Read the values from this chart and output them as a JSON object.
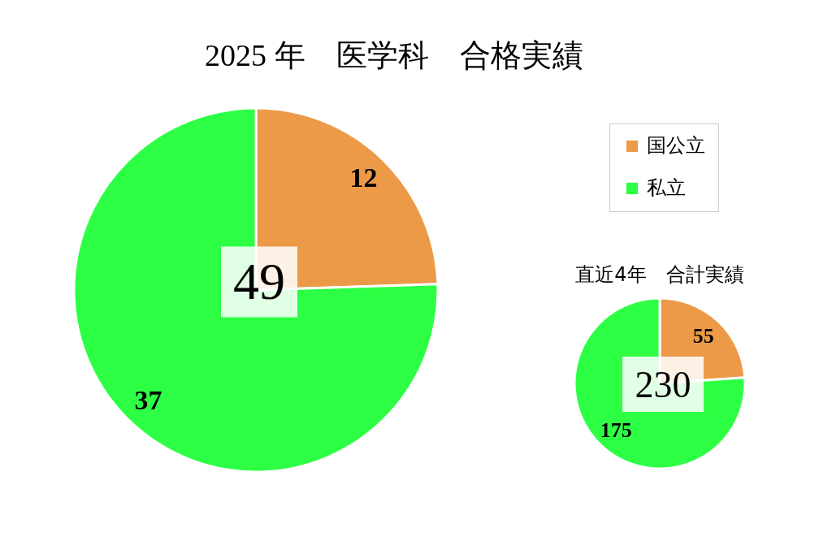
{
  "chart_data": [
    {
      "type": "pie",
      "title": "2025 年　医学科　合格実績",
      "categories": [
        "国公立",
        "私立"
      ],
      "values": [
        12,
        37
      ],
      "colors": [
        "#ec9a48",
        "#2cff44"
      ],
      "data_labels": true,
      "legend": "right",
      "annotations": [
        "49"
      ]
    },
    {
      "type": "pie",
      "title": "直近4年　合計実績",
      "categories": [
        null,
        null
      ],
      "values": [
        55,
        175
      ],
      "colors": [
        "#ec9a48",
        "#2cff44"
      ],
      "data_labels": true,
      "annotations": [
        "230"
      ]
    }
  ]
}
